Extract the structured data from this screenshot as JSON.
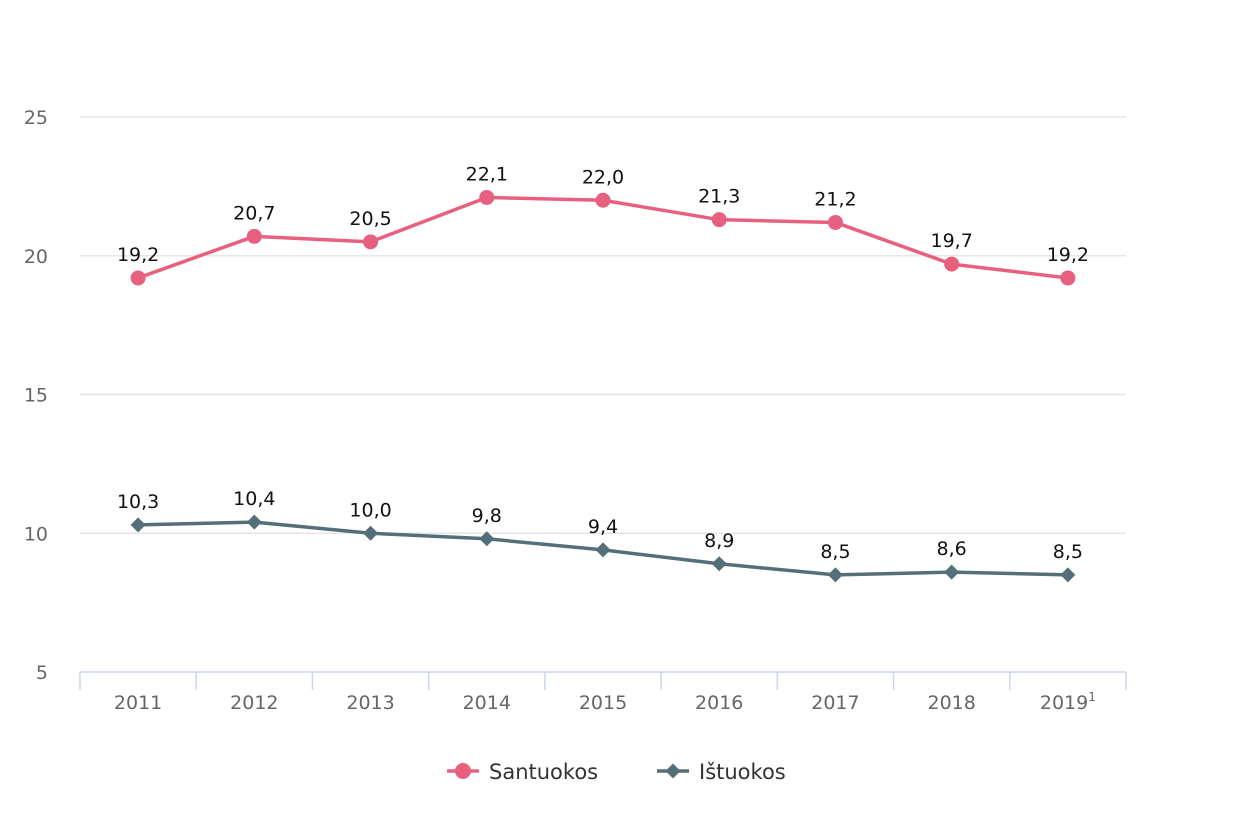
{
  "chart_data": {
    "type": "line",
    "title": "",
    "xlabel": "",
    "ylabel": "",
    "categories": [
      "2011",
      "2012",
      "2013",
      "2014",
      "2015",
      "2016",
      "2017",
      "2018",
      "2019"
    ],
    "category_superscripts": [
      "",
      "",
      "",
      "",
      "",
      "",
      "",
      "",
      "1"
    ],
    "ylim": [
      5,
      25
    ],
    "yticks": [
      "5",
      "10",
      "15",
      "20",
      "25"
    ],
    "ytick_values": [
      5,
      10,
      15,
      20,
      25
    ],
    "grid": true,
    "legend_position": "bottom-center",
    "series": [
      {
        "name": "Santuokos",
        "color": "#e8607f",
        "marker": "circle",
        "values": [
          19.2,
          20.7,
          20.5,
          22.1,
          22.0,
          21.3,
          21.2,
          19.7,
          19.2
        ],
        "labels": [
          "19,2",
          "20,7",
          "20,5",
          "22,1",
          "22,0",
          "21,3",
          "21,2",
          "19,7",
          "19,2"
        ]
      },
      {
        "name": "Ištuokos",
        "color": "#546e7a",
        "marker": "diamond",
        "values": [
          10.3,
          10.4,
          10.0,
          9.8,
          9.4,
          8.9,
          8.5,
          8.6,
          8.5
        ],
        "labels": [
          "10,3",
          "10,4",
          "10,0",
          "9,8",
          "9,4",
          "8,9",
          "8,5",
          "8,6",
          "8,5"
        ]
      }
    ]
  }
}
